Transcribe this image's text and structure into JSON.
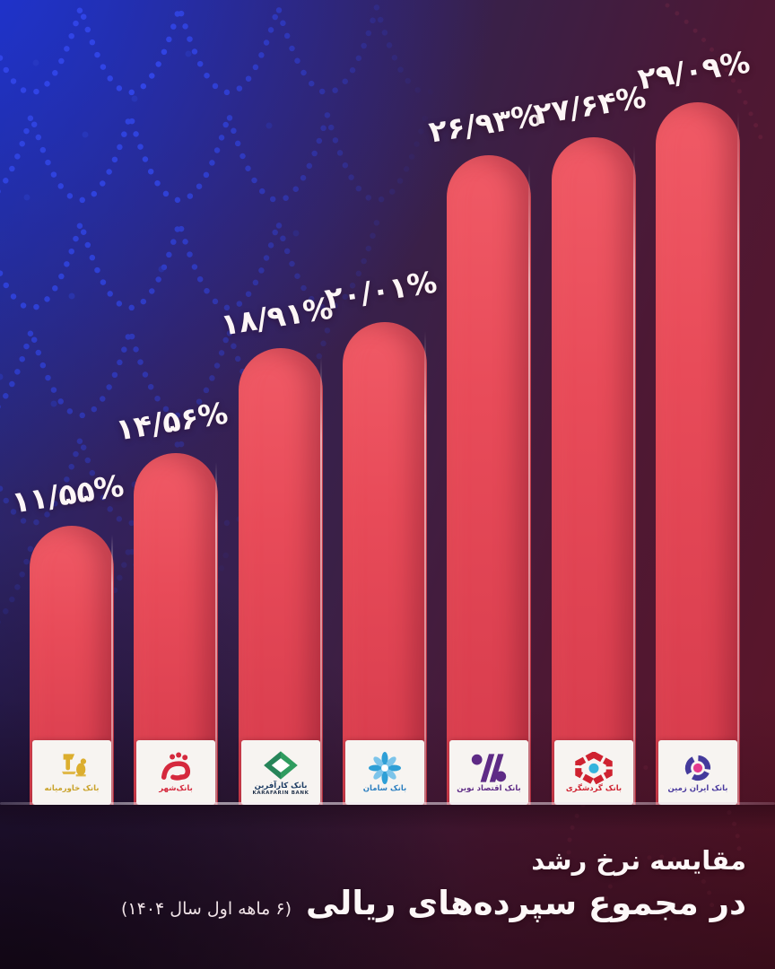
{
  "title_block": {
    "title": "مقایسه نرخ رشد",
    "subtitle": "در مجموع سپرده‌های ریالی",
    "period_note": "(۶ ماهه اول سال ۱۴۰۴)"
  },
  "chart_data": {
    "type": "bar",
    "title": "مقایسه نرخ رشد در مجموع سپرده‌های ریالی",
    "period": "۶ ماهه اول سال ۱۴۰۴",
    "unit": "%",
    "orientation": "vertical",
    "grid": false,
    "axes_shown": false,
    "ylim": [
      0,
      30
    ],
    "bar_color": "#e84b59",
    "categories": [
      "بانک خاورمیانه",
      "بانک‌شهر",
      "بانک کارآفرین",
      "بانک سامان",
      "بانک اقتصاد نوین",
      "بانک گردشگری",
      "بانک ایران زمین"
    ],
    "values": [
      11.55,
      14.56,
      18.91,
      20.01,
      26.93,
      27.64,
      29.09
    ],
    "value_labels": [
      "۱۱/۵۵%",
      "۱۴/۵۶%",
      "۱۸/۹۱%",
      "۲۰/۰۱%",
      "۲۶/۹۳%",
      "۲۷/۶۴%",
      "۲۹/۰۹%"
    ]
  },
  "bars": [
    {
      "bank": "بانک خاورمیانه",
      "value": 11.55,
      "label": "۱۱/۵۵%",
      "logo_icon": "middle-east-bank-logo",
      "caption": "بانک خاورمیانه",
      "caption_en": "",
      "brand_color": "#c9a22a"
    },
    {
      "bank": "بانک‌شهر",
      "value": 14.56,
      "label": "۱۴/۵۶%",
      "logo_icon": "bank-shahr-logo",
      "caption": "بانک‌شهر",
      "caption_en": "",
      "brand_color": "#d5293d"
    },
    {
      "bank": "بانک کارآفرین",
      "value": 18.91,
      "label": "۱۸/۹۱%",
      "logo_icon": "karafarin-bank-logo",
      "caption": "بانک کارآفرین",
      "caption_en": "KARAFARIN BANK",
      "brand_color": "#1d3c63"
    },
    {
      "bank": "بانک سامان",
      "value": 20.01,
      "label": "۲۰/۰۱%",
      "logo_icon": "saman-bank-logo",
      "caption": "بانک سامان",
      "caption_en": "",
      "brand_color": "#2d7fc0"
    },
    {
      "bank": "بانک اقتصاد نوین",
      "value": 26.93,
      "label": "۲۶/۹۳%",
      "logo_icon": "eghtesad-novin-bank-logo",
      "caption": "بانک اقتصاد نوین",
      "caption_en": "",
      "brand_color": "#5e2b86"
    },
    {
      "bank": "بانک گردشگری",
      "value": 27.64,
      "label": "۲۷/۶۴%",
      "logo_icon": "gardeshgari-bank-logo",
      "caption": "بانک گردشگری",
      "caption_en": "",
      "brand_color": "#cf2230"
    },
    {
      "bank": "بانک ایران زمین",
      "value": 29.09,
      "label": "۲۹/۰۹%",
      "logo_icon": "iran-zamin-bank-logo",
      "caption": "بانک ایران زمین",
      "caption_en": "",
      "brand_color": "#4a3a9e"
    }
  ],
  "colors": {
    "background_blue": "#232a7e",
    "background_purple": "#3a2047",
    "background_maroon": "#5e1527",
    "bar_top": "#f05a66",
    "bar_bottom": "#d63b4c",
    "label_text": "#fdf6f6",
    "logo_box": "#f7f4f1",
    "dots_blue": "#3146e8"
  }
}
